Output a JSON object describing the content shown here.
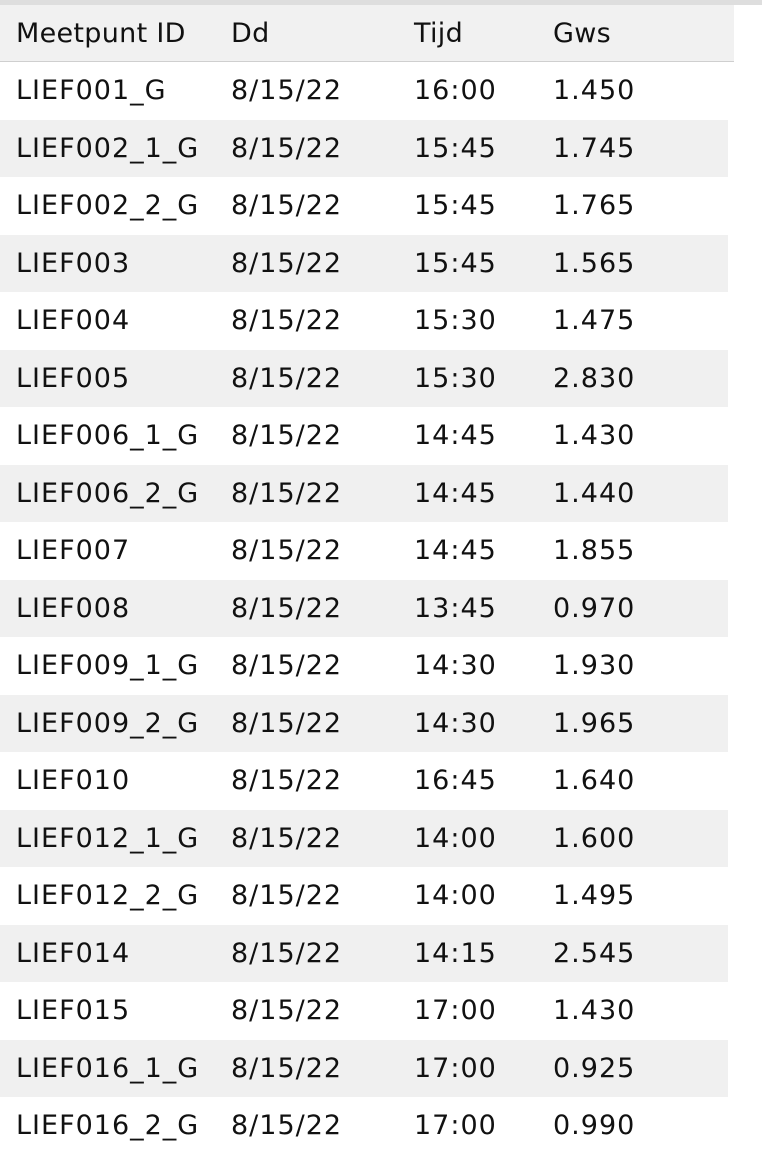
{
  "columns": {
    "id": "Meetpunt ID",
    "dd": "Dd",
    "tijd": "Tijd",
    "gws": "Gws"
  },
  "rows": [
    {
      "id": "LIEF001_G",
      "dd": "8/15/22",
      "tijd": "16:00",
      "gws": "1.450"
    },
    {
      "id": "LIEF002_1_G",
      "dd": "8/15/22",
      "tijd": "15:45",
      "gws": "1.745"
    },
    {
      "id": "LIEF002_2_G",
      "dd": "8/15/22",
      "tijd": "15:45",
      "gws": "1.765"
    },
    {
      "id": "LIEF003",
      "dd": "8/15/22",
      "tijd": "15:45",
      "gws": "1.565"
    },
    {
      "id": "LIEF004",
      "dd": "8/15/22",
      "tijd": "15:30",
      "gws": "1.475"
    },
    {
      "id": "LIEF005",
      "dd": "8/15/22",
      "tijd": "15:30",
      "gws": "2.830"
    },
    {
      "id": "LIEF006_1_G",
      "dd": "8/15/22",
      "tijd": "14:45",
      "gws": "1.430"
    },
    {
      "id": "LIEF006_2_G",
      "dd": "8/15/22",
      "tijd": "14:45",
      "gws": "1.440"
    },
    {
      "id": "LIEF007",
      "dd": "8/15/22",
      "tijd": "14:45",
      "gws": "1.855"
    },
    {
      "id": "LIEF008",
      "dd": "8/15/22",
      "tijd": "13:45",
      "gws": "0.970"
    },
    {
      "id": "LIEF009_1_G",
      "dd": "8/15/22",
      "tijd": "14:30",
      "gws": "1.930"
    },
    {
      "id": "LIEF009_2_G",
      "dd": "8/15/22",
      "tijd": "14:30",
      "gws": "1.965"
    },
    {
      "id": "LIEF010",
      "dd": "8/15/22",
      "tijd": "16:45",
      "gws": "1.640"
    },
    {
      "id": "LIEF012_1_G",
      "dd": "8/15/22",
      "tijd": "14:00",
      "gws": "1.600"
    },
    {
      "id": "LIEF012_2_G",
      "dd": "8/15/22",
      "tijd": "14:00",
      "gws": "1.495"
    },
    {
      "id": "LIEF014",
      "dd": "8/15/22",
      "tijd": "14:15",
      "gws": "2.545"
    },
    {
      "id": "LIEF015",
      "dd": "8/15/22",
      "tijd": "17:00",
      "gws": "1.430"
    },
    {
      "id": "LIEF016_1_G",
      "dd": "8/15/22",
      "tijd": "17:00",
      "gws": "0.925"
    },
    {
      "id": "LIEF016_2_G",
      "dd": "8/15/22",
      "tijd": "17:00",
      "gws": "0.990"
    }
  ]
}
